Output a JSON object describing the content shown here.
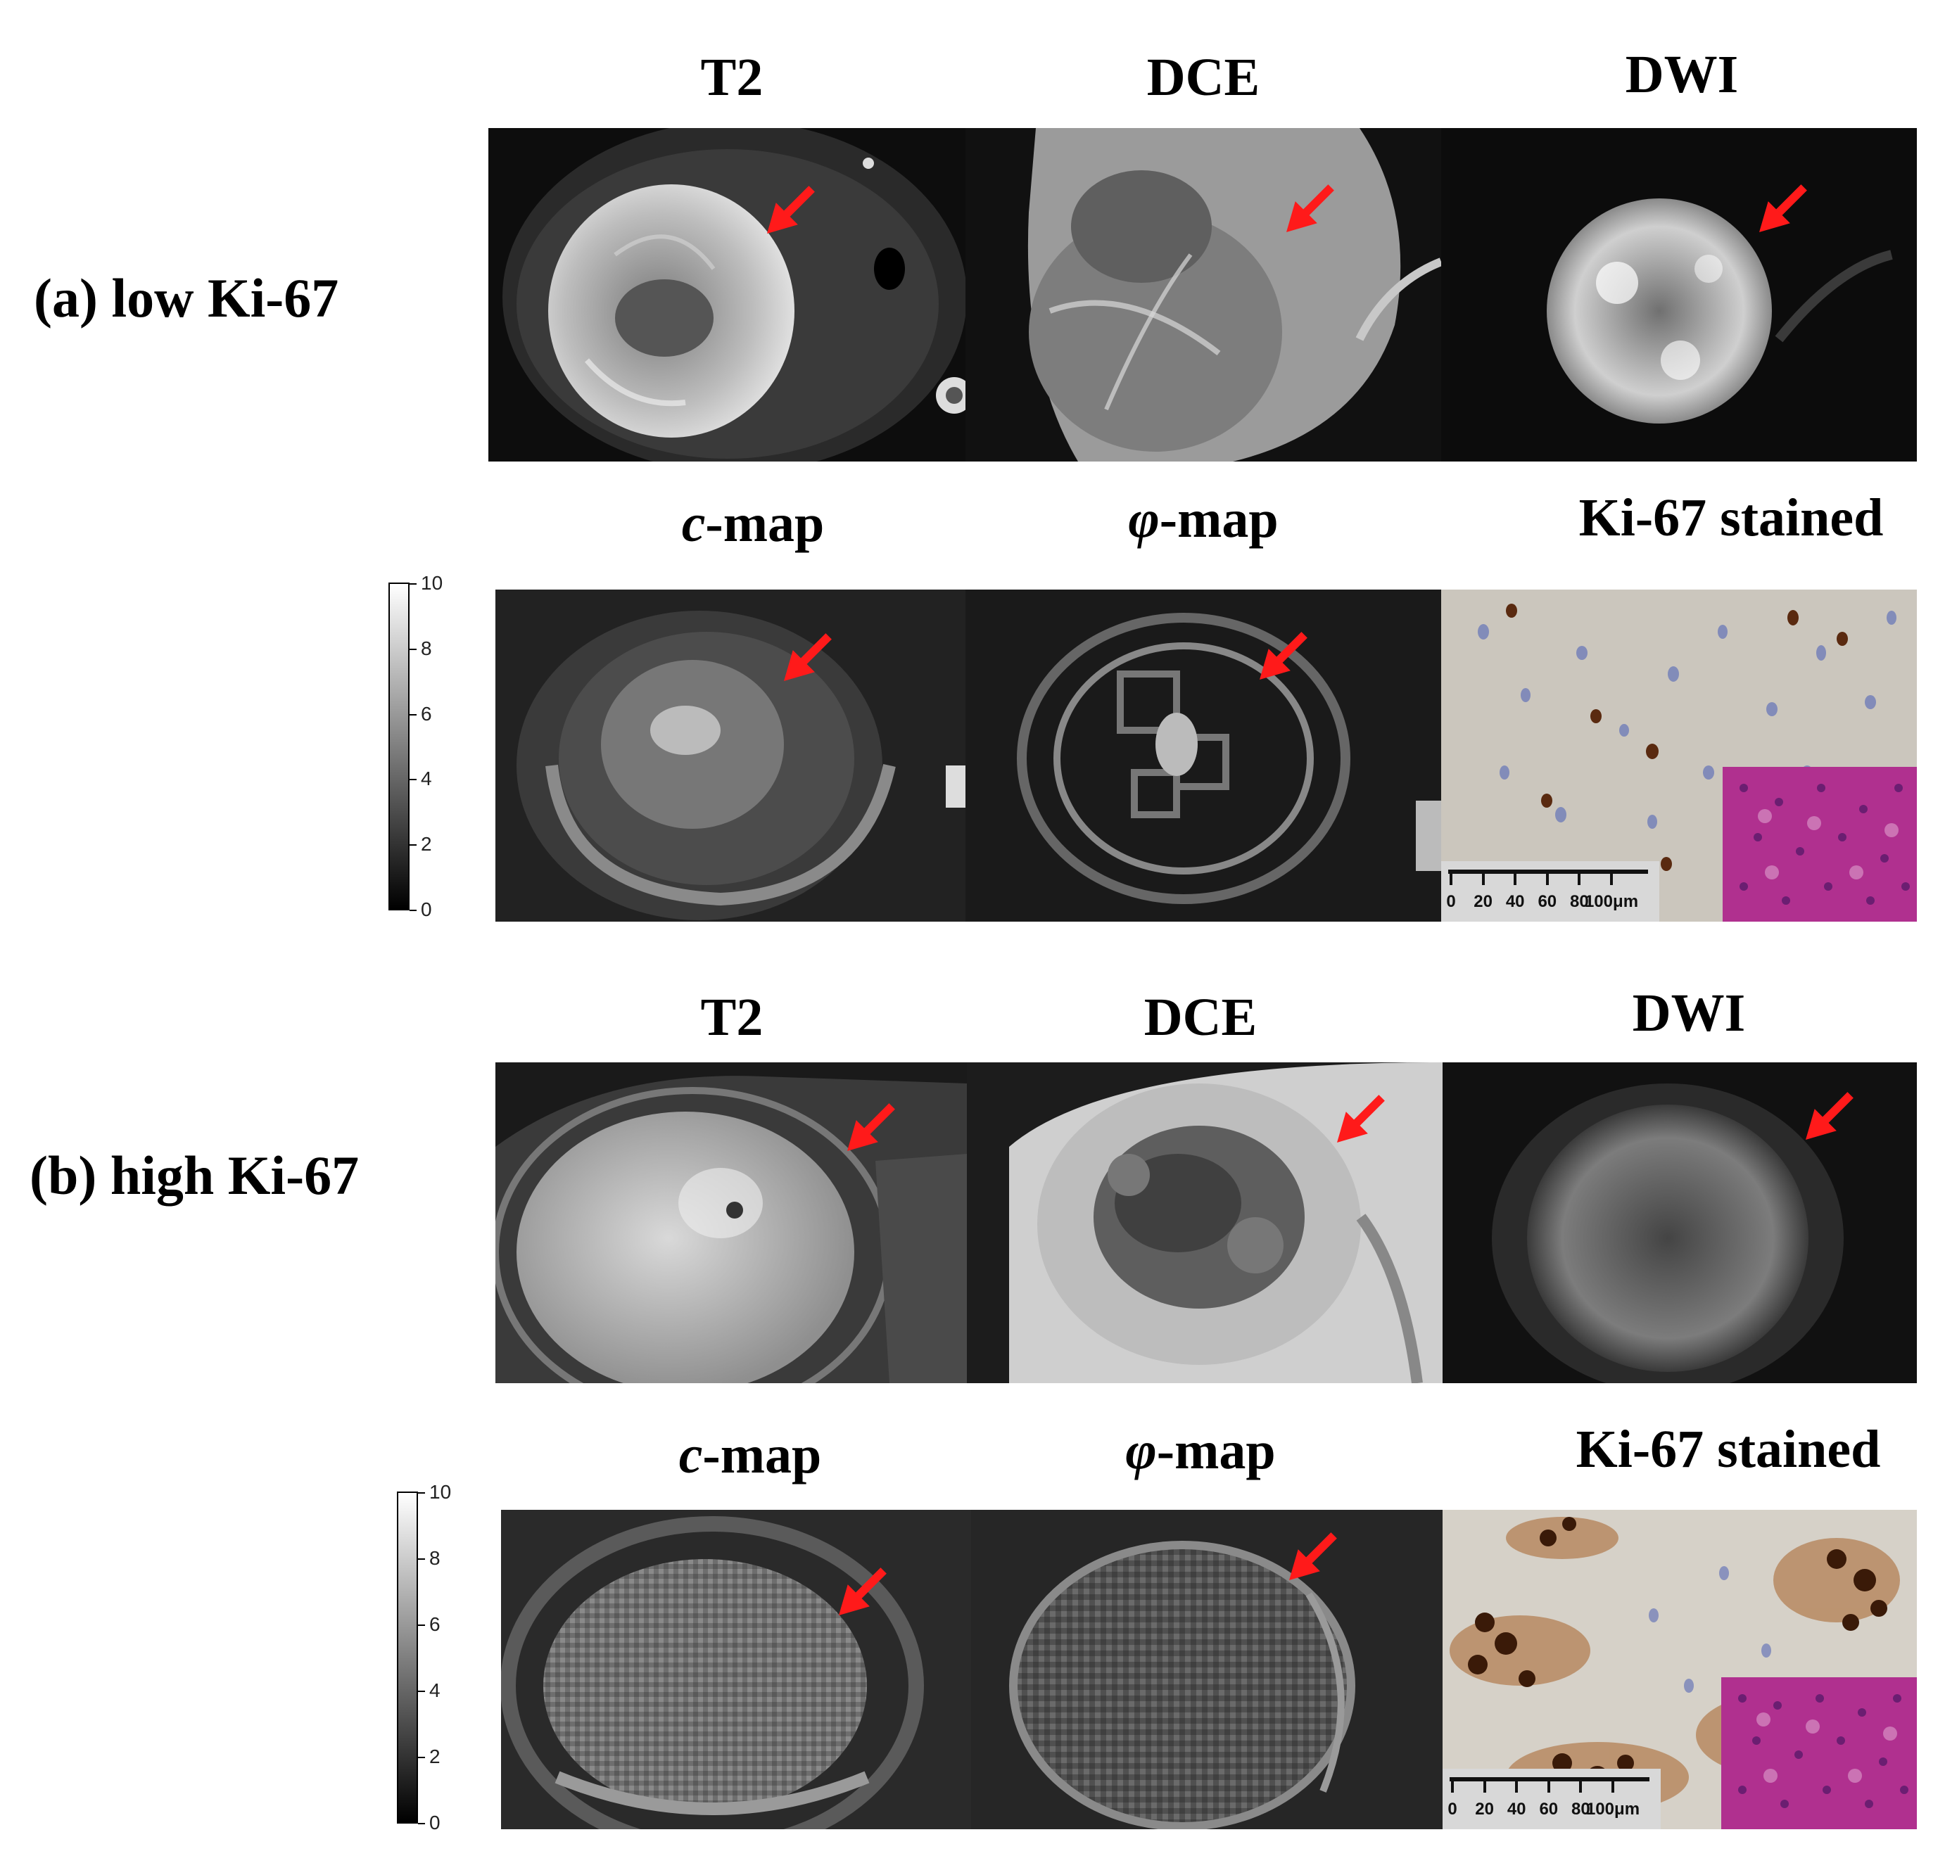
{
  "rows": [
    {
      "id": "a",
      "label": "(a) low Ki-67",
      "top_columns": [
        "T2",
        "DCE",
        "DWI"
      ],
      "bottom_columns": {
        "c_map": {
          "symbol": "c",
          "suffix": "-map"
        },
        "phi_map": {
          "symbol": "φ",
          "suffix": "-map"
        },
        "stain": "Ki-67 stained"
      },
      "colorbar_ticks": [
        "10",
        "8",
        "6",
        "4",
        "2",
        "0"
      ],
      "scalebar_ticks": [
        "0",
        "20",
        "40",
        "60",
        "80",
        "100μm"
      ]
    },
    {
      "id": "b",
      "label": "(b) high Ki-67",
      "top_columns": [
        "T2",
        "DCE",
        "DWI"
      ],
      "bottom_columns": {
        "c_map": {
          "symbol": "c",
          "suffix": "-map"
        },
        "phi_map": {
          "symbol": "φ",
          "suffix": "-map"
        },
        "stain": "Ki-67 stained"
      },
      "colorbar_ticks": [
        "10",
        "8",
        "6",
        "4",
        "2",
        "0"
      ],
      "scalebar_ticks": [
        "0",
        "20",
        "40",
        "60",
        "80",
        "100μm"
      ]
    }
  ],
  "colors": {
    "arrow": "#ff1a1a",
    "stain_background": "#cbc6bd",
    "he_inset": "#b0308f",
    "brown_nuclei": "#5a2a10",
    "blue_nuclei": "#6a78b8"
  },
  "icons": {
    "arrow": "red-arrow-icon"
  }
}
